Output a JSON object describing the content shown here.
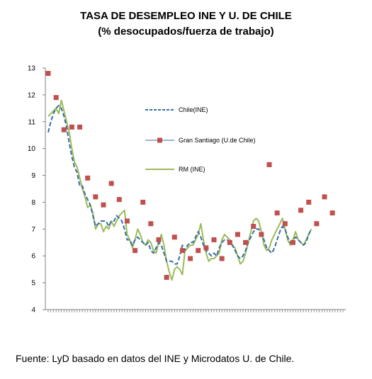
{
  "header": {
    "title_line1": "TASA  DE  DESEMPLEO INE Y U. DE CHILE",
    "title_line2": "(% desocupados/fuerza de trabajo)"
  },
  "footer": {
    "source": "Fuente: LyD basado en datos del INE y Microdatos U. de Chile."
  },
  "chart_data": {
    "type": "line",
    "ylim": [
      4,
      13
    ],
    "yticks": [
      "4",
      "5",
      "6",
      "7",
      "8",
      "9",
      "10",
      "11",
      "12",
      "13"
    ],
    "n_periods": 113,
    "grid": false,
    "legend_position": "center",
    "series": [
      {
        "name": "Chile(INE)",
        "kind": "line",
        "style": "dashed",
        "color": "#3A6EA5",
        "values": [
          10.6,
          11.0,
          11.3,
          11.5,
          11.6,
          11.5,
          11.2,
          10.8,
          10.2,
          9.7,
          9.3,
          9.1,
          8.6,
          8.6,
          8.3,
          8.1,
          7.9,
          7.5,
          7.1,
          7.2,
          7.3,
          7.3,
          7.3,
          7.1,
          7.3,
          7.3,
          7.5,
          7.4,
          7.3,
          7.0,
          6.6,
          6.6,
          6.4,
          6.6,
          6.7,
          6.6,
          6.5,
          6.4,
          6.5,
          6.2,
          6.1,
          6.3,
          6.5,
          6.4,
          6.1,
          5.8,
          5.8,
          5.8,
          5.7,
          5.7,
          6.0,
          6.4,
          6.2,
          6.4,
          6.5,
          6.5,
          6.7,
          6.9,
          6.7,
          6.4,
          6.2,
          6.1,
          6.0,
          6.1,
          6.0,
          6.3,
          6.5,
          6.6,
          6.6,
          6.5,
          6.4,
          6.2,
          6.0,
          5.9,
          6.0,
          6.2,
          6.5,
          6.7,
          6.9,
          7.0,
          7.0,
          6.8,
          6.6,
          6.3,
          6.2,
          6.1,
          6.3,
          6.6,
          6.9,
          7.1,
          7.0,
          6.7,
          6.5,
          6.6,
          6.7,
          6.6,
          6.5,
          6.4,
          6.5,
          6.8,
          7.0
        ],
        "x_first": 0
      },
      {
        "name": "Gran  Santiago (U.de Chile)",
        "kind": "markers",
        "color": "#C0504D",
        "points": [
          [
            0,
            12.8
          ],
          [
            3,
            11.9
          ],
          [
            6,
            10.7
          ],
          [
            9,
            10.8
          ],
          [
            12,
            10.8
          ],
          [
            15,
            8.9
          ],
          [
            18,
            8.2
          ],
          [
            21,
            7.9
          ],
          [
            24,
            8.7
          ],
          [
            27,
            8.1
          ],
          [
            30,
            7.3
          ],
          [
            33,
            6.2
          ],
          [
            36,
            8.0
          ],
          [
            39,
            7.2
          ],
          [
            42,
            6.6
          ],
          [
            45,
            5.2
          ],
          [
            48,
            6.7
          ],
          [
            51,
            6.2
          ],
          [
            54,
            5.9
          ],
          [
            57,
            6.2
          ],
          [
            60,
            6.3
          ],
          [
            63,
            6.6
          ],
          [
            66,
            5.9
          ],
          [
            69,
            6.5
          ],
          [
            72,
            6.8
          ],
          [
            75,
            6.5
          ],
          [
            78,
            7.1
          ],
          [
            81,
            6.8
          ],
          [
            84,
            9.4
          ],
          [
            87,
            7.6
          ],
          [
            90,
            7.2
          ],
          [
            93,
            6.5
          ],
          [
            96,
            7.7
          ],
          [
            99,
            8.0
          ],
          [
            102,
            7.2
          ],
          [
            105,
            8.2
          ],
          [
            108,
            7.6
          ]
        ]
      },
      {
        "name": "RM (INE)",
        "kind": "line",
        "style": "solid",
        "color": "#9BBB59",
        "values": [
          11.2,
          11.3,
          11.4,
          11.5,
          11.3,
          11.8,
          11.4,
          11.0,
          10.6,
          10.0,
          9.5,
          9.3,
          8.9,
          8.5,
          8.2,
          7.8,
          7.9,
          7.6,
          7.0,
          7.2,
          7.2,
          6.9,
          7.1,
          7.0,
          7.3,
          7.1,
          7.3,
          7.5,
          7.6,
          7.7,
          6.8,
          6.6,
          6.3,
          6.6,
          7.0,
          6.8,
          6.5,
          6.4,
          6.6,
          6.5,
          6.2,
          6.1,
          6.5,
          6.8,
          6.4,
          5.8,
          5.4,
          5.1,
          5.5,
          5.6,
          5.5,
          5.3,
          6.2,
          6.3,
          6.4,
          6.4,
          6.6,
          6.8,
          7.2,
          6.6,
          6.1,
          5.8,
          5.9,
          5.9,
          6.0,
          6.1,
          6.6,
          6.8,
          6.7,
          6.6,
          6.4,
          6.3,
          6.0,
          5.7,
          5.8,
          6.1,
          6.5,
          6.9,
          7.3,
          7.4,
          7.3,
          6.9,
          6.4,
          6.2,
          6.3,
          6.6,
          6.8,
          7.0,
          7.2,
          7.4,
          7.0,
          6.6,
          6.4,
          6.6,
          6.9,
          6.6,
          6.5,
          6.4,
          6.6,
          6.8,
          7.0
        ],
        "x_first": 0
      }
    ]
  }
}
